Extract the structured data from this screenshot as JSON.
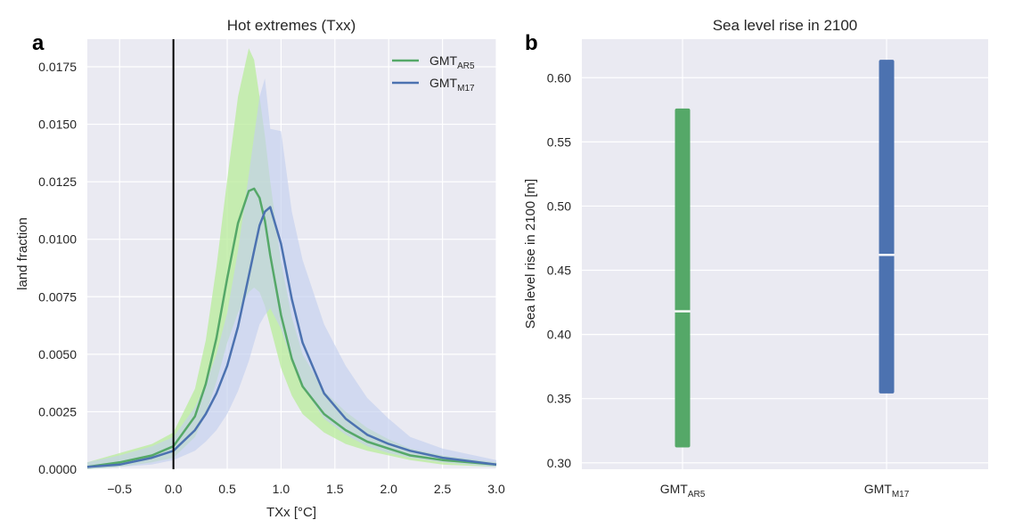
{
  "chart_data": [
    {
      "panel": "a",
      "type": "line",
      "title": "Hot extremes (Txx)",
      "xlabel": "TXx [°C]",
      "ylabel": "land fraction",
      "xlim": [
        -0.8,
        3.0
      ],
      "ylim": [
        0.0,
        0.0187
      ],
      "xticks": [
        "−0.5",
        "0.0",
        "0.5",
        "1.0",
        "1.5",
        "2.0",
        "2.5",
        "3.0"
      ],
      "xtick_values": [
        -0.5,
        0.0,
        0.5,
        1.0,
        1.5,
        2.0,
        2.5,
        3.0
      ],
      "yticks": [
        "0.0000",
        "0.0025",
        "0.0050",
        "0.0075",
        "0.0100",
        "0.0125",
        "0.0150",
        "0.0175"
      ],
      "ytick_values": [
        0.0,
        0.0025,
        0.005,
        0.0075,
        0.01,
        0.0125,
        0.015,
        0.0175
      ],
      "grid": true,
      "legend_position": "top-right",
      "vertical_line_x": 0.0,
      "x": [
        -0.8,
        -0.5,
        -0.2,
        0.0,
        0.2,
        0.3,
        0.4,
        0.5,
        0.6,
        0.7,
        0.75,
        0.8,
        0.85,
        0.9,
        1.0,
        1.1,
        1.2,
        1.4,
        1.6,
        1.8,
        2.0,
        2.2,
        2.5,
        3.0
      ],
      "series": [
        {
          "name": "GMT",
          "sub": "AR5",
          "color": "#55a868",
          "band_color": "#b8ec9a",
          "values": [
            0.0001,
            0.0003,
            0.0006,
            0.001,
            0.0023,
            0.0037,
            0.0057,
            0.0083,
            0.0107,
            0.0121,
            0.0122,
            0.0118,
            0.0108,
            0.0093,
            0.0067,
            0.0048,
            0.0036,
            0.0024,
            0.0017,
            0.0012,
            0.0009,
            0.0006,
            0.0004,
            0.0002
          ],
          "lower": [
            0.0,
            0.0001,
            0.0003,
            0.0005,
            0.0014,
            0.0024,
            0.0038,
            0.0055,
            0.0068,
            0.0077,
            0.0079,
            0.0077,
            0.0071,
            0.0062,
            0.0044,
            0.0032,
            0.0024,
            0.0016,
            0.0011,
            0.0008,
            0.0006,
            0.0004,
            0.0002,
            0.0001
          ],
          "upper": [
            0.0003,
            0.0007,
            0.0011,
            0.0016,
            0.0035,
            0.0056,
            0.0088,
            0.0126,
            0.0162,
            0.0183,
            0.0178,
            0.0162,
            0.0145,
            0.0125,
            0.009,
            0.0066,
            0.005,
            0.0034,
            0.0025,
            0.0018,
            0.0013,
            0.0009,
            0.0006,
            0.0003
          ]
        },
        {
          "name": "GMT",
          "sub": "M17",
          "color": "#4c72b0",
          "band_color": "#c3d0ee",
          "values": [
            0.0001,
            0.0002,
            0.0005,
            0.0008,
            0.0017,
            0.0024,
            0.0033,
            0.0045,
            0.0062,
            0.0084,
            0.0095,
            0.0106,
            0.0112,
            0.0114,
            0.0098,
            0.0074,
            0.0055,
            0.0033,
            0.0022,
            0.0015,
            0.0011,
            0.0008,
            0.0005,
            0.0002
          ],
          "lower": [
            0.0,
            0.0001,
            0.0002,
            0.0004,
            0.0008,
            0.0012,
            0.0017,
            0.0024,
            0.0034,
            0.0047,
            0.0055,
            0.0063,
            0.0067,
            0.007,
            0.0061,
            0.0047,
            0.0036,
            0.0022,
            0.0015,
            0.001,
            0.0007,
            0.0005,
            0.0003,
            0.0001
          ],
          "upper": [
            0.0003,
            0.0006,
            0.001,
            0.0014,
            0.0027,
            0.0037,
            0.005,
            0.0068,
            0.0095,
            0.0128,
            0.0145,
            0.0162,
            0.017,
            0.0148,
            0.0147,
            0.0112,
            0.0091,
            0.0063,
            0.0045,
            0.0031,
            0.0022,
            0.0014,
            0.0009,
            0.0004
          ]
        }
      ]
    },
    {
      "panel": "b",
      "type": "bar",
      "title": "Sea level rise in 2100",
      "xlabel": "",
      "ylabel": "Sea level rise in 2100 [m]",
      "ylim": [
        0.295,
        0.63
      ],
      "yticks": [
        "0.30",
        "0.35",
        "0.40",
        "0.45",
        "0.50",
        "0.55",
        "0.60"
      ],
      "ytick_values": [
        0.3,
        0.35,
        0.4,
        0.45,
        0.5,
        0.55,
        0.6
      ],
      "grid": true,
      "categories": [
        {
          "name": "GMT",
          "sub": "AR5"
        },
        {
          "name": "GMT",
          "sub": "M17"
        }
      ],
      "ranges": [
        {
          "low": 0.312,
          "high": 0.576,
          "median": 0.418,
          "color": "#55a868"
        },
        {
          "low": 0.354,
          "high": 0.614,
          "median": 0.462,
          "color": "#4c72b0"
        }
      ]
    }
  ]
}
